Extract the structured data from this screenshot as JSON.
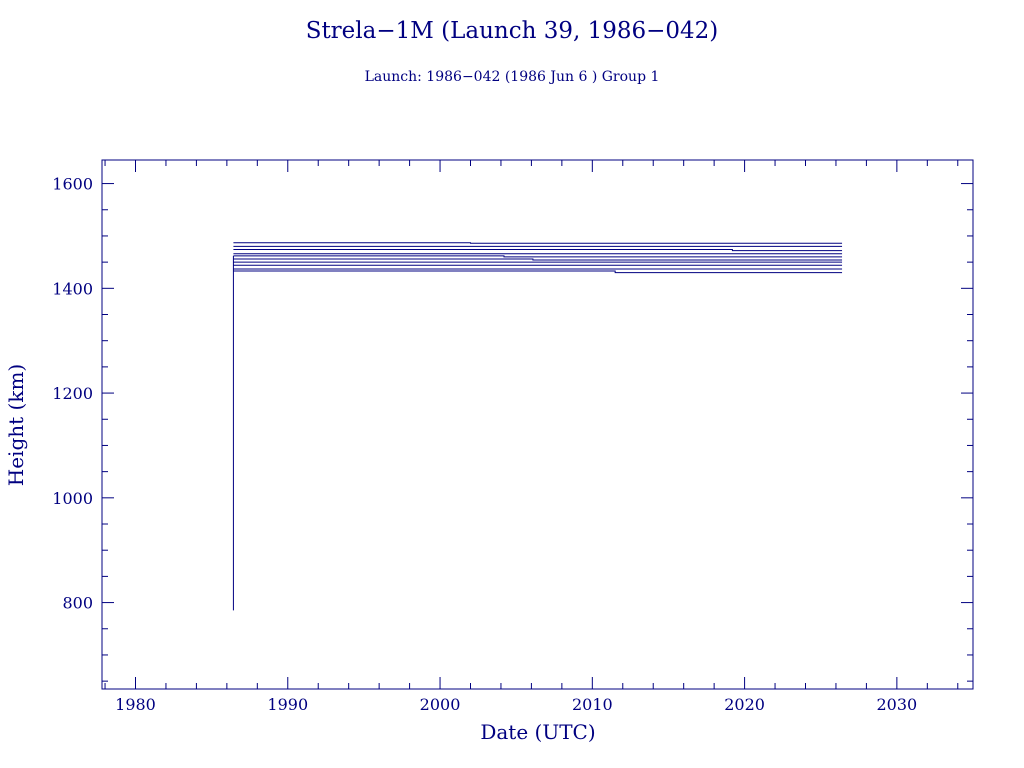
{
  "chart_data": {
    "type": "line",
    "title": "Strela−1M (Launch 39, 1986−042)",
    "subtitle": "Launch: 1986−042  (1986 Jun  6 )  Group 1",
    "xlabel": "Date (UTC)",
    "ylabel": "Height (km)",
    "xlim": [
      1977.8,
      2035
    ],
    "ylim": [
      635,
      1645
    ],
    "xticks_major": [
      1980,
      1990,
      2000,
      2010,
      2020,
      2030
    ],
    "xtick_labels": [
      "1980",
      "1990",
      "2000",
      "2010",
      "2020",
      "2030"
    ],
    "xticks_minor_step": 2,
    "yticks_major": [
      800,
      1000,
      1200,
      1400,
      1600
    ],
    "ytick_labels": [
      "800",
      "1000",
      "1200",
      "1400",
      "1600"
    ],
    "yticks_minor_step": 50,
    "grid": false,
    "color": "#000080",
    "launch_drop": {
      "x": 1986.43,
      "y_from": 785,
      "y_to": 1462
    },
    "series": [
      {
        "values": [
          [
            1986.43,
            1487
          ],
          [
            2002.0,
            1487
          ],
          [
            2002.0,
            1486
          ],
          [
            2026.4,
            1486
          ]
        ]
      },
      {
        "values": [
          [
            1986.43,
            1480
          ],
          [
            2026.4,
            1480
          ]
        ]
      },
      {
        "values": [
          [
            1986.43,
            1474
          ],
          [
            2019.2,
            1474
          ],
          [
            2019.2,
            1472
          ],
          [
            2026.4,
            1472
          ]
        ]
      },
      {
        "values": [
          [
            1986.43,
            1466
          ],
          [
            2026.4,
            1466
          ]
        ]
      },
      {
        "values": [
          [
            1986.43,
            1462
          ],
          [
            2004.2,
            1462
          ],
          [
            2004.2,
            1460
          ],
          [
            2026.4,
            1460
          ]
        ]
      },
      {
        "values": [
          [
            1986.43,
            1456
          ],
          [
            2006.1,
            1456
          ],
          [
            2006.1,
            1454
          ],
          [
            2026.4,
            1454
          ]
        ]
      },
      {
        "values": [
          [
            1986.43,
            1450
          ],
          [
            2026.4,
            1450
          ]
        ]
      },
      {
        "values": [
          [
            1986.43,
            1444
          ],
          [
            2026.4,
            1444
          ]
        ]
      },
      {
        "values": [
          [
            1986.43,
            1437
          ],
          [
            2026.4,
            1437
          ]
        ]
      },
      {
        "values": [
          [
            1986.43,
            1433
          ],
          [
            2011.5,
            1433
          ],
          [
            2011.5,
            1430
          ],
          [
            2026.4,
            1430
          ]
        ]
      }
    ]
  }
}
